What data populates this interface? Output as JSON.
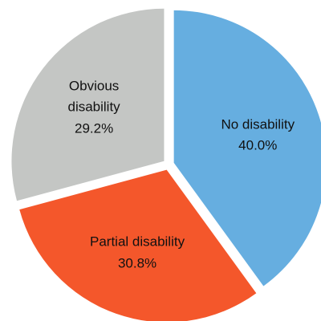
{
  "chart_data": {
    "type": "pie",
    "categories": [
      "No disability",
      "Partial disability",
      "Obvious disability"
    ],
    "values": [
      40.0,
      30.8,
      29.2
    ],
    "value_labels": [
      "40.0%",
      "30.8%",
      "29.2%"
    ],
    "colors": [
      "#66aee0",
      "#f4572b",
      "#c4c6c4"
    ]
  }
}
